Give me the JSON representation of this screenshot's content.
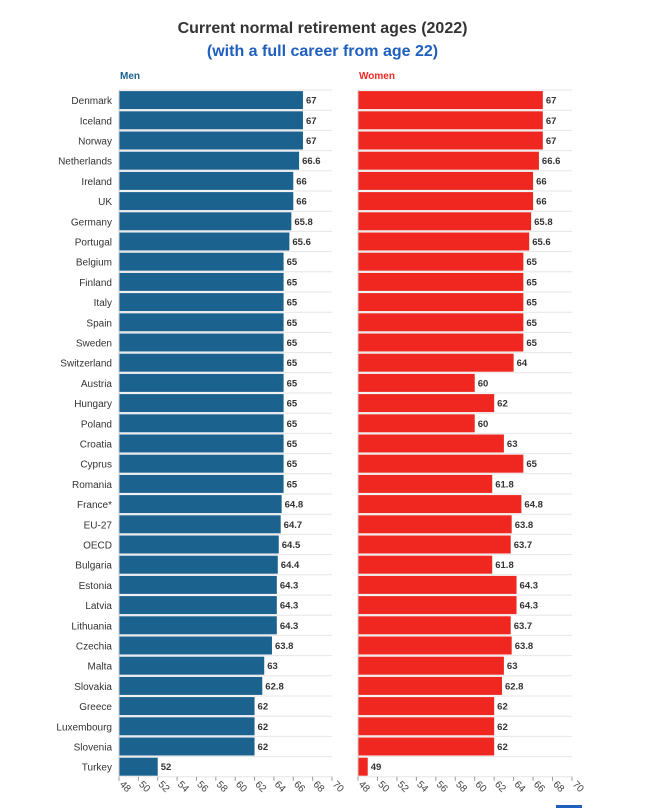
{
  "title": "Current normal retirement ages (2022)",
  "subtitle": "(with a full career from age 22)",
  "colors": {
    "men": "#1c628f",
    "women": "#ef2720",
    "subtitle": "#1f5fbf",
    "title": "#333333"
  },
  "chart_data": {
    "type": "bar",
    "orientation": "horizontal",
    "title": "Current normal retirement ages (2022)",
    "subtitle": "(with a full career from age 22)",
    "categories": [
      "Denmark",
      "Iceland",
      "Norway",
      "Netherlands",
      "Ireland",
      "UK",
      "Germany",
      "Portugal",
      "Belgium",
      "Finland",
      "Italy",
      "Spain",
      "Sweden",
      "Switzerland",
      "Austria",
      "Hungary",
      "Poland",
      "Croatia",
      "Cyprus",
      "Romania",
      "France*",
      "EU-27",
      "OECD",
      "Bulgaria",
      "Estonia",
      "Latvia",
      "Lithuania",
      "Czechia",
      "Malta",
      "Slovakia",
      "Greece",
      "Luxembourg",
      "Slovenia",
      "Turkey"
    ],
    "series": [
      {
        "name": "Men",
        "values": [
          67,
          67,
          67,
          66.6,
          66,
          66,
          65.8,
          65.6,
          65,
          65,
          65,
          65,
          65,
          65,
          65,
          65,
          65,
          65,
          65,
          65,
          64.8,
          64.7,
          64.5,
          64.4,
          64.3,
          64.3,
          64.3,
          63.8,
          63,
          62.8,
          62,
          62,
          62,
          52
        ],
        "labels": [
          "67",
          "67",
          "67",
          "66.6",
          "66",
          "66",
          "65.8",
          "65.6",
          "65",
          "65",
          "65",
          "65",
          "65",
          "65",
          "65",
          "65",
          "65",
          "65",
          "65",
          "65",
          "64.8",
          "64.7",
          "64.5",
          "64.4",
          "64.3",
          "64.3",
          "64.3",
          "63.8",
          "63",
          "62.8",
          "62",
          "62",
          "62",
          "52"
        ]
      },
      {
        "name": "Women",
        "values": [
          67,
          67,
          67,
          66.6,
          66,
          66,
          65.8,
          65.6,
          65,
          65,
          65,
          65,
          65,
          64,
          60,
          62,
          60,
          63,
          65,
          61.8,
          64.8,
          63.8,
          63.7,
          61.8,
          64.3,
          64.3,
          63.7,
          63.8,
          63,
          62.8,
          62,
          62,
          62,
          49
        ],
        "labels": [
          "67",
          "67",
          "67",
          "66.6",
          "66",
          "66",
          "65.8",
          "65.6",
          "65",
          "65",
          "65",
          "65",
          "65",
          "64",
          "60",
          "62",
          "60",
          "63",
          "65",
          "61.8",
          "64.8",
          "63.8",
          "63.7",
          "61.8",
          "64.3",
          "64.3",
          "63.7",
          "63.8",
          "63",
          "62.8",
          "62",
          "62",
          "62",
          "49"
        ]
      }
    ],
    "xlim": [
      48,
      70
    ],
    "xticks": [
      "48",
      "50",
      "52",
      "54",
      "56",
      "58",
      "60",
      "62",
      "64",
      "66",
      "68",
      "70"
    ],
    "grid": true
  }
}
